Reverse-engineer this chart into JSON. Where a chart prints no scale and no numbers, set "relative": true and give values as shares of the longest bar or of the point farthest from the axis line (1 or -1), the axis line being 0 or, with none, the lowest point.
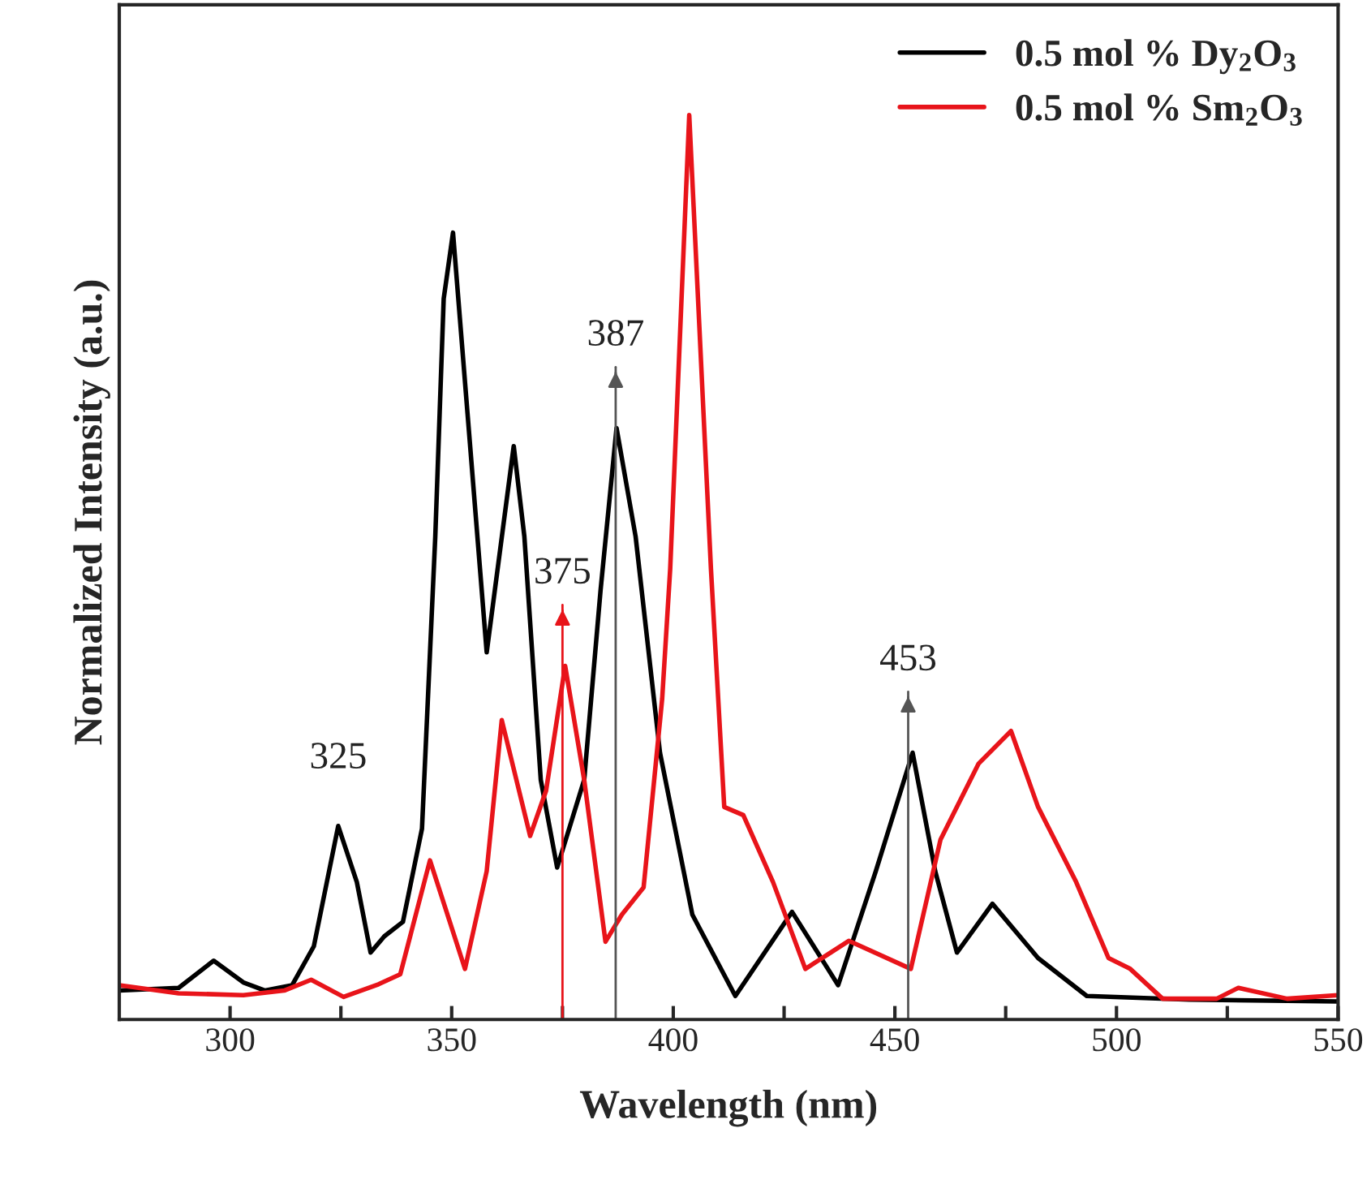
{
  "chart_data": {
    "type": "line",
    "xlabel": "Wavelength (nm)",
    "ylabel": "Normalized Intensity (a.u.)",
    "relative": true,
    "xlim": [
      275,
      550
    ],
    "xticks": [
      300,
      {
        "value": 325,
        "label": null
      },
      350,
      {
        "value": 375,
        "label": null
      },
      400,
      {
        "value": 425,
        "label": null
      },
      450,
      {
        "value": 475,
        "label": null
      },
      500,
      {
        "value": 525,
        "label": null
      },
      550
    ],
    "legend": "top right",
    "marker": "none",
    "line_style": "solid",
    "grid": false,
    "series": [
      {
        "name": "0.5 mol % Dy$_{2}$O$_{3}$",
        "color": "#000000",
        "x": [
          275,
          288.4,
          296.3,
          303,
          307.9,
          314,
          318.9,
          324.4,
          328.6,
          331.7,
          334.8,
          339,
          343.3,
          346.3,
          348.2,
          350.3,
          357.9,
          364,
          366.4,
          370.1,
          373.8,
          379.9,
          383.6,
          387.2,
          391.5,
          397,
          404.3,
          414,
          426.8,
          437.2,
          445.7,
          454,
          459.1,
          464,
          472,
          482.3,
          493.3,
          516.5,
          550
        ],
        "values": [
          0.032,
          0.035,
          0.065,
          0.041,
          0.032,
          0.038,
          0.081,
          0.214,
          0.152,
          0.074,
          0.092,
          0.108,
          0.211,
          0.534,
          0.797,
          0.87,
          0.406,
          0.634,
          0.534,
          0.265,
          0.168,
          0.265,
          0.475,
          0.654,
          0.534,
          0.295,
          0.116,
          0.026,
          0.119,
          0.038,
          0.164,
          0.295,
          0.164,
          0.074,
          0.128,
          0.068,
          0.026,
          0.022,
          0.02
        ]
      },
      {
        "name": "0.5 mol % Sm$_{2}$O$_{3}$",
        "color": "#e8141a",
        "x": [
          275,
          288.4,
          303,
          312.2,
          318.3,
          325.6,
          333.5,
          338.4,
          345.1,
          353,
          357.9,
          361.3,
          367.7,
          371.3,
          375.6,
          379.9,
          384.7,
          388.4,
          393.3,
          397.5,
          399.3,
          403.6,
          408.5,
          411.5,
          415.8,
          422.5,
          429.8,
          439.6,
          453.6,
          460.3,
          468.9,
          476.2,
          482.3,
          490.9,
          498.2,
          503.1,
          510.4,
          522.6,
          527.5,
          538.5,
          550
        ],
        "values": [
          0.038,
          0.029,
          0.027,
          0.032,
          0.044,
          0.025,
          0.039,
          0.05,
          0.176,
          0.056,
          0.164,
          0.331,
          0.203,
          0.253,
          0.391,
          0.265,
          0.086,
          0.116,
          0.146,
          0.355,
          0.498,
          1.0,
          0.498,
          0.235,
          0.226,
          0.152,
          0.056,
          0.087,
          0.056,
          0.199,
          0.283,
          0.319,
          0.235,
          0.152,
          0.068,
          0.056,
          0.023,
          0.023,
          0.035,
          0.023,
          0.027
        ]
      }
    ],
    "annotations": [
      {
        "text": "325",
        "x": 324.4,
        "y": 0.214
      }
    ],
    "ref_lines": [
      {
        "axis": "x",
        "value": 375,
        "label": "375",
        "color": "#e8141a"
      },
      {
        "axis": "x",
        "value": 387,
        "label": "387",
        "color": "#555555"
      },
      {
        "axis": "x",
        "value": 453,
        "label": "453",
        "color": "#555555"
      }
    ]
  }
}
